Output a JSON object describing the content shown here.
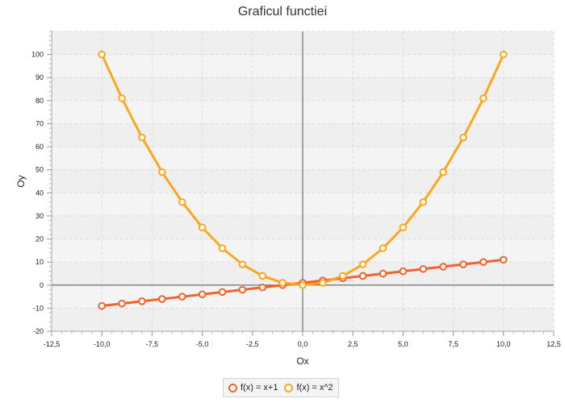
{
  "chart_data": {
    "type": "line",
    "title": "Graficul functiei",
    "xlabel": "Ox",
    "ylabel": "Oy",
    "xlim": [
      -12.5,
      12.5
    ],
    "ylim": [
      -20,
      110
    ],
    "x_ticks": [
      "-12,5",
      "-10,0",
      "-7,5",
      "-5,0",
      "-2,5",
      "0,0",
      "2,5",
      "5,0",
      "7,5",
      "10,0",
      "12,5"
    ],
    "y_ticks": [
      "-20",
      "-10",
      "0",
      "10",
      "20",
      "30",
      "40",
      "50",
      "60",
      "70",
      "80",
      "90",
      "100"
    ],
    "grid": true,
    "legend_position": "bottom",
    "x": [
      -10,
      -9,
      -8,
      -7,
      -6,
      -5,
      -4,
      -3,
      -2,
      -1,
      0,
      1,
      2,
      3,
      4,
      5,
      6,
      7,
      8,
      9,
      10
    ],
    "series": [
      {
        "name": "f(x) = x+1",
        "color": "#f3622d",
        "values": [
          -9,
          -8,
          -7,
          -6,
          -5,
          -4,
          -3,
          -2,
          -1,
          0,
          1,
          2,
          3,
          4,
          5,
          6,
          7,
          8,
          9,
          10,
          11
        ]
      },
      {
        "name": "f(x) = x^2",
        "color": "#fba71b",
        "values": [
          100,
          81,
          64,
          49,
          36,
          25,
          16,
          9,
          4,
          1,
          0,
          1,
          4,
          9,
          16,
          25,
          36,
          49,
          64,
          81,
          100
        ]
      }
    ]
  }
}
